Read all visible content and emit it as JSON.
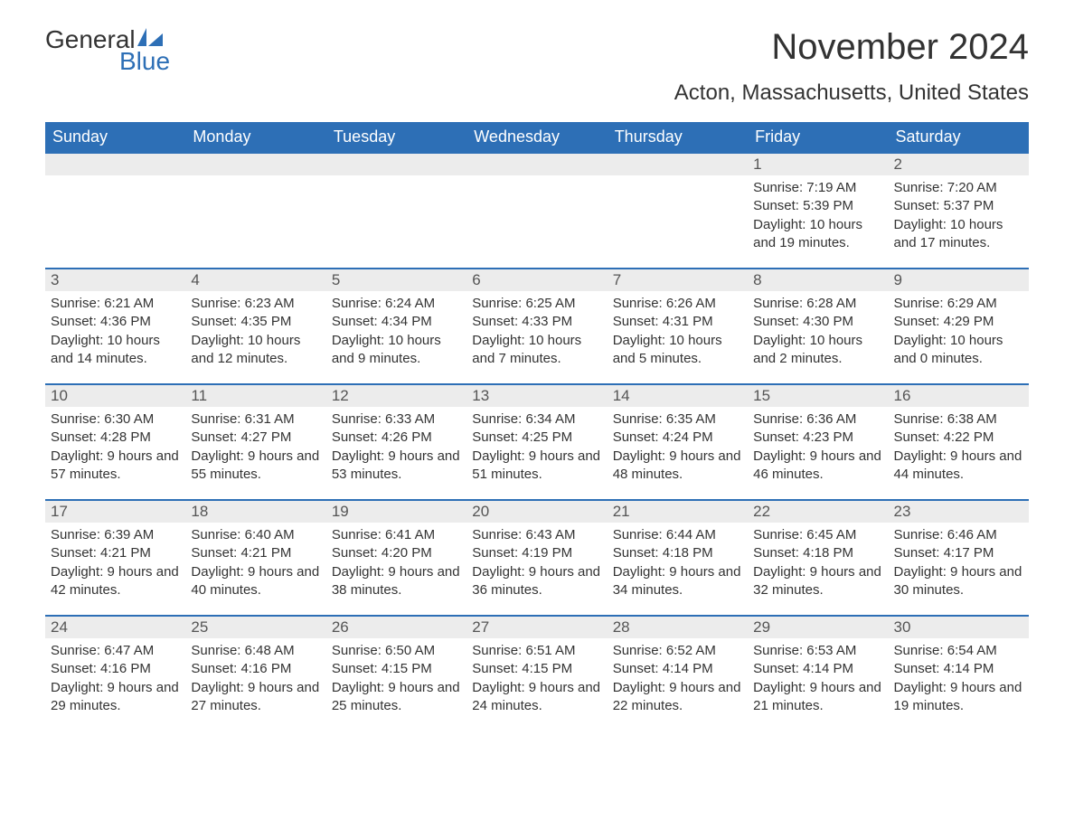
{
  "brand": {
    "name_top": "General",
    "name_bottom": "Blue",
    "accent_color": "#2d6fb6"
  },
  "title": "November 2024",
  "location": "Acton, Massachusetts, United States",
  "columns": [
    "Sunday",
    "Monday",
    "Tuesday",
    "Wednesday",
    "Thursday",
    "Friday",
    "Saturday"
  ],
  "header_bg": "#2d6fb6",
  "header_text_color": "#ffffff",
  "daynum_bg": "#ececec",
  "row_border_color": "#2d6fb6",
  "body_text_color": "#333333",
  "font_family": "Arial",
  "weeks": [
    [
      null,
      null,
      null,
      null,
      null,
      {
        "n": "1",
        "sunrise": "7:19 AM",
        "sunset": "5:39 PM",
        "daylight": "10 hours and 19 minutes."
      },
      {
        "n": "2",
        "sunrise": "7:20 AM",
        "sunset": "5:37 PM",
        "daylight": "10 hours and 17 minutes."
      }
    ],
    [
      {
        "n": "3",
        "sunrise": "6:21 AM",
        "sunset": "4:36 PM",
        "daylight": "10 hours and 14 minutes."
      },
      {
        "n": "4",
        "sunrise": "6:23 AM",
        "sunset": "4:35 PM",
        "daylight": "10 hours and 12 minutes."
      },
      {
        "n": "5",
        "sunrise": "6:24 AM",
        "sunset": "4:34 PM",
        "daylight": "10 hours and 9 minutes."
      },
      {
        "n": "6",
        "sunrise": "6:25 AM",
        "sunset": "4:33 PM",
        "daylight": "10 hours and 7 minutes."
      },
      {
        "n": "7",
        "sunrise": "6:26 AM",
        "sunset": "4:31 PM",
        "daylight": "10 hours and 5 minutes."
      },
      {
        "n": "8",
        "sunrise": "6:28 AM",
        "sunset": "4:30 PM",
        "daylight": "10 hours and 2 minutes."
      },
      {
        "n": "9",
        "sunrise": "6:29 AM",
        "sunset": "4:29 PM",
        "daylight": "10 hours and 0 minutes."
      }
    ],
    [
      {
        "n": "10",
        "sunrise": "6:30 AM",
        "sunset": "4:28 PM",
        "daylight": "9 hours and 57 minutes."
      },
      {
        "n": "11",
        "sunrise": "6:31 AM",
        "sunset": "4:27 PM",
        "daylight": "9 hours and 55 minutes."
      },
      {
        "n": "12",
        "sunrise": "6:33 AM",
        "sunset": "4:26 PM",
        "daylight": "9 hours and 53 minutes."
      },
      {
        "n": "13",
        "sunrise": "6:34 AM",
        "sunset": "4:25 PM",
        "daylight": "9 hours and 51 minutes."
      },
      {
        "n": "14",
        "sunrise": "6:35 AM",
        "sunset": "4:24 PM",
        "daylight": "9 hours and 48 minutes."
      },
      {
        "n": "15",
        "sunrise": "6:36 AM",
        "sunset": "4:23 PM",
        "daylight": "9 hours and 46 minutes."
      },
      {
        "n": "16",
        "sunrise": "6:38 AM",
        "sunset": "4:22 PM",
        "daylight": "9 hours and 44 minutes."
      }
    ],
    [
      {
        "n": "17",
        "sunrise": "6:39 AM",
        "sunset": "4:21 PM",
        "daylight": "9 hours and 42 minutes."
      },
      {
        "n": "18",
        "sunrise": "6:40 AM",
        "sunset": "4:21 PM",
        "daylight": "9 hours and 40 minutes."
      },
      {
        "n": "19",
        "sunrise": "6:41 AM",
        "sunset": "4:20 PM",
        "daylight": "9 hours and 38 minutes."
      },
      {
        "n": "20",
        "sunrise": "6:43 AM",
        "sunset": "4:19 PM",
        "daylight": "9 hours and 36 minutes."
      },
      {
        "n": "21",
        "sunrise": "6:44 AM",
        "sunset": "4:18 PM",
        "daylight": "9 hours and 34 minutes."
      },
      {
        "n": "22",
        "sunrise": "6:45 AM",
        "sunset": "4:18 PM",
        "daylight": "9 hours and 32 minutes."
      },
      {
        "n": "23",
        "sunrise": "6:46 AM",
        "sunset": "4:17 PM",
        "daylight": "9 hours and 30 minutes."
      }
    ],
    [
      {
        "n": "24",
        "sunrise": "6:47 AM",
        "sunset": "4:16 PM",
        "daylight": "9 hours and 29 minutes."
      },
      {
        "n": "25",
        "sunrise": "6:48 AM",
        "sunset": "4:16 PM",
        "daylight": "9 hours and 27 minutes."
      },
      {
        "n": "26",
        "sunrise": "6:50 AM",
        "sunset": "4:15 PM",
        "daylight": "9 hours and 25 minutes."
      },
      {
        "n": "27",
        "sunrise": "6:51 AM",
        "sunset": "4:15 PM",
        "daylight": "9 hours and 24 minutes."
      },
      {
        "n": "28",
        "sunrise": "6:52 AM",
        "sunset": "4:14 PM",
        "daylight": "9 hours and 22 minutes."
      },
      {
        "n": "29",
        "sunrise": "6:53 AM",
        "sunset": "4:14 PM",
        "daylight": "9 hours and 21 minutes."
      },
      {
        "n": "30",
        "sunrise": "6:54 AM",
        "sunset": "4:14 PM",
        "daylight": "9 hours and 19 minutes."
      }
    ]
  ],
  "labels": {
    "sunrise": "Sunrise:",
    "sunset": "Sunset:",
    "daylight": "Daylight:"
  }
}
